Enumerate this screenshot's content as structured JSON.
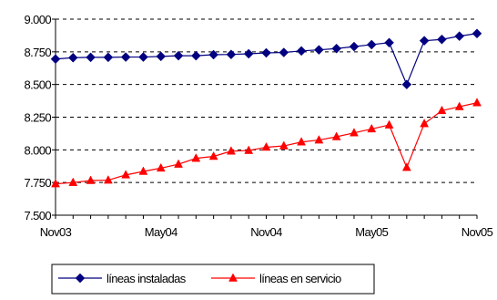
{
  "chart_data": {
    "type": "line",
    "title": "",
    "xlabel": "",
    "ylabel": "",
    "ylim": [
      7500,
      9000
    ],
    "yticks": [
      7500,
      7750,
      8000,
      8250,
      8500,
      8750,
      9000
    ],
    "ytick_labels": [
      "7.500",
      "7.750",
      "8.000",
      "8.250",
      "8.500",
      "8.750",
      "9.000"
    ],
    "xtick_labels": [
      "Nov03",
      "May04",
      "Nov04",
      "May05",
      "Nov05"
    ],
    "xtick_index": [
      0,
      6,
      12,
      18,
      24
    ],
    "categories": [
      "Nov03",
      "Dec03",
      "Jan04",
      "Feb04",
      "Mar04",
      "Apr04",
      "May04",
      "Jun04",
      "Jul04",
      "Aug04",
      "Sep04",
      "Oct04",
      "Nov04",
      "Dec04",
      "Jan05",
      "Feb05",
      "Mar05",
      "Apr05",
      "May05",
      "Jun05",
      "Jul05",
      "Aug05",
      "Sep05",
      "Oct05",
      "Nov05"
    ],
    "grid": "horizontal-dashed",
    "legend_position": "bottom",
    "series": [
      {
        "name": "líneas instaladas",
        "marker": "diamond",
        "color": "#000080",
        "values": [
          8695,
          8705,
          8708,
          8708,
          8710,
          8710,
          8715,
          8720,
          8720,
          8728,
          8730,
          8735,
          8742,
          8745,
          8757,
          8765,
          8775,
          8790,
          8805,
          8820,
          8500,
          8835,
          8845,
          8870,
          8890
        ]
      },
      {
        "name": "líneas en servicio",
        "marker": "triangle",
        "color": "#ff0000",
        "values": [
          7740,
          7750,
          7765,
          7768,
          7808,
          7835,
          7860,
          7890,
          7935,
          7950,
          7990,
          7995,
          8020,
          8030,
          8060,
          8075,
          8100,
          8130,
          8160,
          8190,
          7865,
          8200,
          8300,
          8330,
          8360
        ]
      }
    ]
  }
}
